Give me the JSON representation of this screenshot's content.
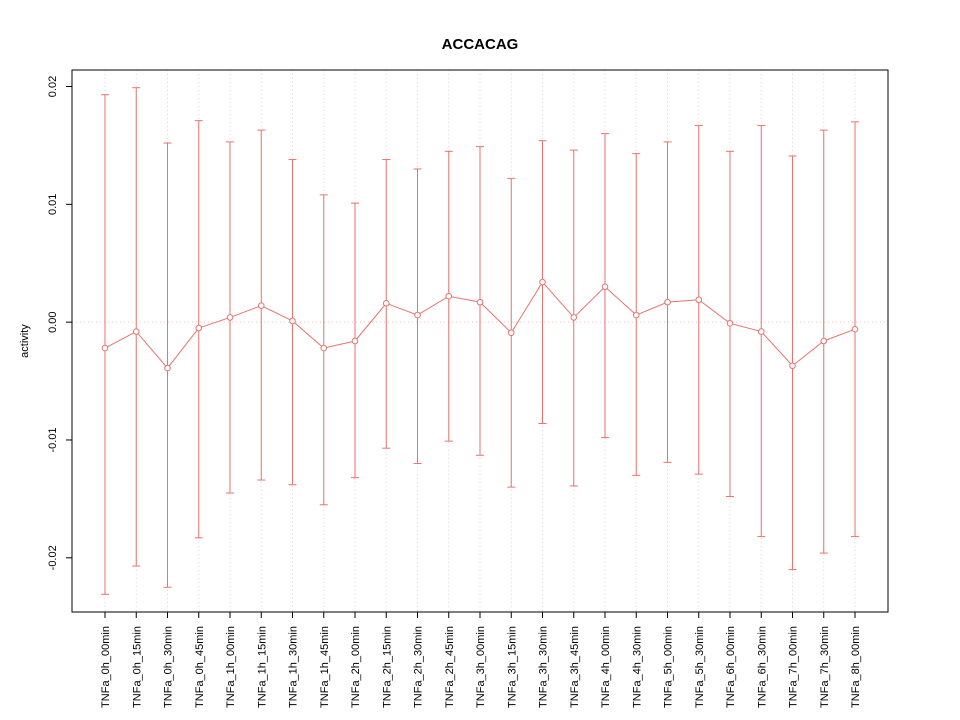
{
  "chart_data": {
    "type": "line",
    "title": "ACCACAG",
    "xlabel": "",
    "ylabel": "activity",
    "legend": "none",
    "grid": "vertical-dotted",
    "zero_line": true,
    "ylim": [
      -0.0246,
      0.0214
    ],
    "y_ticks": [
      {
        "value": 0.02,
        "label": "0.02"
      },
      {
        "value": 0.01,
        "label": "0.01"
      },
      {
        "value": 0.0,
        "label": "0.00"
      },
      {
        "value": -0.01,
        "label": "-0.01"
      },
      {
        "value": -0.02,
        "label": "-0.02"
      }
    ],
    "categories": [
      "TNFa_0h_00min",
      "TNFa_0h_15min",
      "TNFa_0h_30min",
      "TNFa_0h_45min",
      "TNFa_1h_00min",
      "TNFa_1h_15min",
      "TNFa_1h_30min",
      "TNFa_1h_45min",
      "TNFa_2h_00min",
      "TNFa_2h_15min",
      "TNFa_2h_30min",
      "TNFa_2h_45min",
      "TNFa_3h_00min",
      "TNFa_3h_15min",
      "TNFa_3h_30min",
      "TNFa_3h_45min",
      "TNFa_4h_00min",
      "TNFa_4h_30min",
      "TNFa_5h_00min",
      "TNFa_5h_30min",
      "TNFa_6h_00min",
      "TNFa_6h_30min",
      "TNFa_7h_00min",
      "TNFa_7h_30min",
      "TNFa_8h_00min"
    ],
    "series": [
      {
        "name": "activity",
        "marker": "open-circle",
        "values": [
          -0.0022,
          -0.0008,
          -0.0039,
          -0.0005,
          0.0004,
          0.0014,
          0.0001,
          -0.0022,
          -0.0016,
          0.0016,
          0.0006,
          0.0022,
          0.0017,
          -0.0009,
          0.0034,
          0.0004,
          0.003,
          0.0006,
          0.0017,
          0.0019,
          -0.0001,
          -0.0008,
          -0.0037,
          -0.0016,
          -0.0006
        ],
        "error_high": [
          0.0193,
          0.0199,
          0.0152,
          0.0171,
          0.0153,
          0.0163,
          0.0138,
          0.0108,
          0.0101,
          0.0138,
          0.013,
          0.0145,
          0.0149,
          0.0122,
          0.0154,
          0.0146,
          0.016,
          0.0143,
          0.0153,
          0.0167,
          0.0145,
          0.0167,
          0.0141,
          0.0163,
          0.017
        ],
        "error_low": [
          -0.0231,
          -0.0207,
          -0.0225,
          -0.0183,
          -0.0145,
          -0.0134,
          -0.0138,
          -0.0155,
          -0.0132,
          -0.0107,
          -0.012,
          -0.0101,
          -0.0113,
          -0.014,
          -0.0086,
          -0.0139,
          -0.0098,
          -0.013,
          -0.0119,
          -0.0129,
          -0.0148,
          -0.0182,
          -0.021,
          -0.0196,
          -0.0182
        ]
      }
    ],
    "colors": {
      "series": "#e8736e",
      "marker_fill": "#ffffff",
      "grid": "#d9d9d9",
      "zero_line": "#f0c4c2",
      "box": "#000000",
      "background": "#ffffff"
    }
  }
}
